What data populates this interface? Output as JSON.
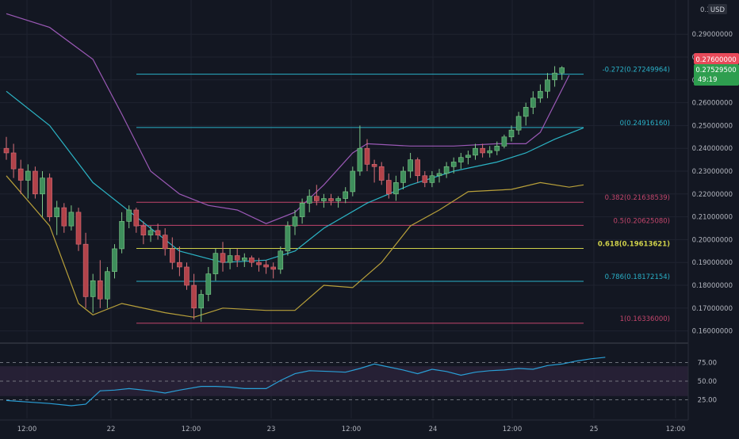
{
  "colors": {
    "background": "#131722",
    "grid": "#1f2330",
    "axis_text": "#b2b5be",
    "up": "#26a69a",
    "up_body": "#3f8f5c",
    "down": "#ef5350",
    "down_body": "#b2434a",
    "bb_upper": "#9b59b6",
    "bb_basis": "#2bb3c4",
    "bb_lower": "#b8a03a",
    "fib_cyan": "#2ab1c8",
    "fib_pink": "#c2456b",
    "fib_golden": "#cfd04a",
    "rsi_line": "#2a9fd6",
    "rsi_band": "#2a2238",
    "price_green": "#2e9e4f",
    "price_red": "#e84a5a"
  },
  "axis": {
    "currency_top": "0.3",
    "currency_unit": "USD",
    "price_ticks": [
      "0.29000000",
      "0.28000000",
      "0.27000000",
      "0.26000000",
      "0.25000000",
      "0.24000000",
      "0.23000000",
      "0.22000000",
      "0.21000000",
      "0.20000000",
      "0.19000000",
      "0.18000000",
      "0.17000000",
      "0.16000000"
    ],
    "rsi_ticks": [
      "75.00",
      "50.00",
      "25.00"
    ],
    "time_ticks": [
      "12:00",
      "22",
      "12:00",
      "23",
      "12:00",
      "24",
      "12:00",
      "25",
      "12:00"
    ]
  },
  "price_labels": {
    "high": "0.27600000",
    "last": "0.27529500",
    "countdown": "49:19"
  },
  "fib_levels": [
    {
      "label": "-0.272(0.27249964)",
      "price": 0.27249964,
      "color": "cyan"
    },
    {
      "label": "0(0.24916160)",
      "price": 0.2491616,
      "color": "cyan"
    },
    {
      "label": "0.382(0.21638539)",
      "price": 0.21638539,
      "color": "pink"
    },
    {
      "label": "0.5(0.20625080)",
      "price": 0.2062508,
      "color": "pink"
    },
    {
      "label": "0.618(0.19613621)",
      "price": 0.19613621,
      "color": "golden"
    },
    {
      "label": "0.786(0.18172154)",
      "price": 0.18172154,
      "color": "cyan"
    },
    {
      "label": "1(0.16336000)",
      "price": 0.16336,
      "color": "pink"
    }
  ],
  "chart_data": {
    "type": "candlestick",
    "title": "",
    "y_range": [
      0.155,
      0.305
    ],
    "candles": [
      [
        0.24,
        0.245,
        0.235,
        0.238
      ],
      [
        0.238,
        0.242,
        0.227,
        0.231
      ],
      [
        0.231,
        0.235,
        0.22,
        0.226
      ],
      [
        0.226,
        0.233,
        0.218,
        0.23
      ],
      [
        0.23,
        0.232,
        0.218,
        0.22
      ],
      [
        0.22,
        0.23,
        0.21,
        0.227
      ],
      [
        0.227,
        0.229,
        0.208,
        0.21
      ],
      [
        0.21,
        0.217,
        0.202,
        0.214
      ],
      [
        0.214,
        0.216,
        0.203,
        0.206
      ],
      [
        0.206,
        0.215,
        0.204,
        0.212
      ],
      [
        0.212,
        0.214,
        0.195,
        0.198
      ],
      [
        0.198,
        0.203,
        0.17,
        0.175
      ],
      [
        0.175,
        0.185,
        0.168,
        0.182
      ],
      [
        0.182,
        0.191,
        0.17,
        0.174
      ],
      [
        0.174,
        0.188,
        0.17,
        0.186
      ],
      [
        0.186,
        0.198,
        0.183,
        0.196
      ],
      [
        0.196,
        0.212,
        0.194,
        0.208
      ],
      [
        0.208,
        0.215,
        0.205,
        0.213
      ],
      [
        0.213,
        0.214,
        0.203,
        0.206
      ],
      [
        0.206,
        0.208,
        0.198,
        0.202
      ],
      [
        0.202,
        0.206,
        0.199,
        0.204
      ],
      [
        0.204,
        0.207,
        0.2,
        0.202
      ],
      [
        0.202,
        0.205,
        0.193,
        0.196
      ],
      [
        0.196,
        0.201,
        0.187,
        0.19
      ],
      [
        0.19,
        0.197,
        0.184,
        0.188
      ],
      [
        0.188,
        0.19,
        0.178,
        0.18
      ],
      [
        0.18,
        0.185,
        0.165,
        0.17
      ],
      [
        0.17,
        0.178,
        0.164,
        0.176
      ],
      [
        0.176,
        0.188,
        0.173,
        0.185
      ],
      [
        0.185,
        0.196,
        0.182,
        0.194
      ],
      [
        0.194,
        0.199,
        0.186,
        0.19
      ],
      [
        0.19,
        0.196,
        0.187,
        0.193
      ],
      [
        0.193,
        0.196,
        0.188,
        0.191
      ],
      [
        0.191,
        0.194,
        0.188,
        0.192
      ],
      [
        0.192,
        0.193,
        0.188,
        0.19
      ],
      [
        0.19,
        0.192,
        0.186,
        0.189
      ],
      [
        0.189,
        0.191,
        0.185,
        0.188
      ],
      [
        0.188,
        0.19,
        0.183,
        0.187
      ],
      [
        0.187,
        0.197,
        0.185,
        0.195
      ],
      [
        0.195,
        0.208,
        0.193,
        0.206
      ],
      [
        0.206,
        0.213,
        0.202,
        0.21
      ],
      [
        0.21,
        0.218,
        0.207,
        0.216
      ],
      [
        0.216,
        0.222,
        0.212,
        0.219
      ],
      [
        0.219,
        0.224,
        0.215,
        0.217
      ],
      [
        0.217,
        0.22,
        0.214,
        0.218
      ],
      [
        0.218,
        0.22,
        0.215,
        0.217
      ],
      [
        0.217,
        0.219,
        0.214,
        0.218
      ],
      [
        0.218,
        0.223,
        0.216,
        0.221
      ],
      [
        0.221,
        0.232,
        0.219,
        0.23
      ],
      [
        0.23,
        0.25,
        0.228,
        0.24
      ],
      [
        0.24,
        0.244,
        0.23,
        0.233
      ],
      [
        0.233,
        0.235,
        0.225,
        0.232
      ],
      [
        0.232,
        0.234,
        0.224,
        0.226
      ],
      [
        0.226,
        0.229,
        0.218,
        0.22
      ],
      [
        0.22,
        0.228,
        0.217,
        0.225
      ],
      [
        0.225,
        0.232,
        0.222,
        0.23
      ],
      [
        0.23,
        0.238,
        0.227,
        0.235
      ],
      [
        0.235,
        0.236,
        0.225,
        0.228
      ],
      [
        0.228,
        0.23,
        0.223,
        0.225
      ],
      [
        0.225,
        0.23,
        0.223,
        0.228
      ],
      [
        0.228,
        0.231,
        0.225,
        0.229
      ],
      [
        0.229,
        0.234,
        0.227,
        0.232
      ],
      [
        0.232,
        0.236,
        0.229,
        0.234
      ],
      [
        0.234,
        0.238,
        0.231,
        0.236
      ],
      [
        0.236,
        0.239,
        0.233,
        0.237
      ],
      [
        0.237,
        0.242,
        0.235,
        0.24
      ],
      [
        0.24,
        0.242,
        0.236,
        0.238
      ],
      [
        0.238,
        0.241,
        0.236,
        0.239
      ],
      [
        0.239,
        0.243,
        0.237,
        0.241
      ],
      [
        0.241,
        0.246,
        0.24,
        0.245
      ],
      [
        0.245,
        0.25,
        0.243,
        0.248
      ],
      [
        0.248,
        0.256,
        0.246,
        0.254
      ],
      [
        0.254,
        0.26,
        0.25,
        0.258
      ],
      [
        0.258,
        0.265,
        0.255,
        0.262
      ],
      [
        0.262,
        0.268,
        0.26,
        0.265
      ],
      [
        0.265,
        0.273,
        0.262,
        0.27
      ],
      [
        0.27,
        0.276,
        0.267,
        0.273
      ],
      [
        0.273,
        0.276,
        0.27,
        0.2753
      ]
    ],
    "bb_upper": [
      [
        0,
        0.299
      ],
      [
        6,
        0.293
      ],
      [
        12,
        0.279
      ],
      [
        16,
        0.255
      ],
      [
        20,
        0.23
      ],
      [
        24,
        0.22
      ],
      [
        28,
        0.215
      ],
      [
        32,
        0.213
      ],
      [
        36,
        0.207
      ],
      [
        40,
        0.212
      ],
      [
        44,
        0.224
      ],
      [
        48,
        0.238
      ],
      [
        50,
        0.242
      ],
      [
        56,
        0.241
      ],
      [
        62,
        0.241
      ],
      [
        68,
        0.242
      ],
      [
        72,
        0.242
      ],
      [
        74,
        0.247
      ],
      [
        78,
        0.272
      ]
    ],
    "bb_basis": [
      [
        0,
        0.265
      ],
      [
        6,
        0.25
      ],
      [
        12,
        0.225
      ],
      [
        18,
        0.21
      ],
      [
        24,
        0.195
      ],
      [
        30,
        0.19
      ],
      [
        36,
        0.191
      ],
      [
        40,
        0.195
      ],
      [
        44,
        0.205
      ],
      [
        50,
        0.216
      ],
      [
        56,
        0.224
      ],
      [
        62,
        0.23
      ],
      [
        68,
        0.234
      ],
      [
        72,
        0.238
      ],
      [
        76,
        0.244
      ],
      [
        80,
        0.249
      ]
    ],
    "bb_lower": [
      [
        0,
        0.228
      ],
      [
        6,
        0.206
      ],
      [
        10,
        0.172
      ],
      [
        12,
        0.167
      ],
      [
        16,
        0.172
      ],
      [
        22,
        0.168
      ],
      [
        26,
        0.166
      ],
      [
        30,
        0.17
      ],
      [
        36,
        0.169
      ],
      [
        40,
        0.169
      ],
      [
        44,
        0.18
      ],
      [
        48,
        0.179
      ],
      [
        52,
        0.19
      ],
      [
        56,
        0.206
      ],
      [
        60,
        0.213
      ],
      [
        64,
        0.221
      ],
      [
        70,
        0.222
      ],
      [
        74,
        0.225
      ],
      [
        78,
        0.223
      ],
      [
        80,
        0.224
      ]
    ],
    "rsi": [
      [
        0,
        24
      ],
      [
        3,
        22
      ],
      [
        6,
        20
      ],
      [
        9,
        17
      ],
      [
        11,
        19
      ],
      [
        13,
        37
      ],
      [
        15,
        38
      ],
      [
        17,
        40
      ],
      [
        20,
        37
      ],
      [
        22,
        34
      ],
      [
        24,
        38
      ],
      [
        27,
        43
      ],
      [
        29,
        43
      ],
      [
        31,
        42
      ],
      [
        33,
        40
      ],
      [
        36,
        40
      ],
      [
        38,
        51
      ],
      [
        40,
        60
      ],
      [
        42,
        64
      ],
      [
        45,
        63
      ],
      [
        47,
        62
      ],
      [
        49,
        67
      ],
      [
        51,
        73
      ],
      [
        53,
        69
      ],
      [
        55,
        65
      ],
      [
        57,
        60
      ],
      [
        59,
        66
      ],
      [
        61,
        63
      ],
      [
        63,
        58
      ],
      [
        65,
        62
      ],
      [
        67,
        64
      ],
      [
        69,
        65
      ],
      [
        71,
        67
      ],
      [
        73,
        66
      ],
      [
        75,
        71
      ],
      [
        77,
        73
      ],
      [
        79,
        77
      ],
      [
        81,
        80
      ],
      [
        83,
        82
      ]
    ],
    "rsi_range": [
      0,
      100
    ],
    "rsi_band": [
      30,
      70
    ]
  }
}
